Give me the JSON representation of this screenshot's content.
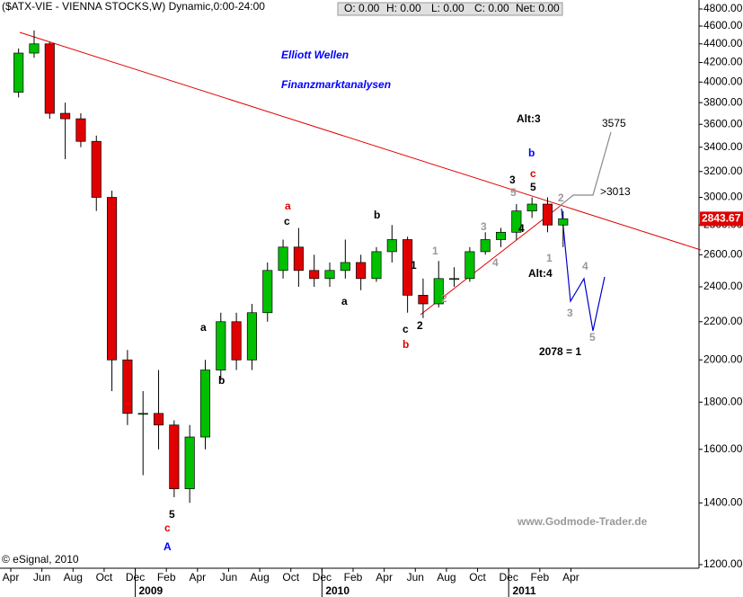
{
  "chart_data": {
    "type": "candlestick",
    "title": "($ATX-VIE - VIENNA STOCKS,W) Dynamic,0:00-24:00",
    "quote_box": [
      "O: 0.00",
      "H: 0.00",
      "L: 0.00",
      "C: 0.00",
      "Net: 0.00"
    ],
    "x": [
      "2008-04",
      "2008-05",
      "2008-06",
      "2008-07",
      "2008-08",
      "2008-09",
      "2008-10",
      "2008-11",
      "2008-12",
      "2009-01",
      "2009-02",
      "2009-03",
      "2009-04",
      "2009-05",
      "2009-06",
      "2009-07",
      "2009-08",
      "2009-09",
      "2009-10",
      "2009-11",
      "2009-12",
      "2010-01",
      "2010-02",
      "2010-03",
      "2010-04",
      "2010-05",
      "2010-06",
      "2010-07",
      "2010-08",
      "2010-09",
      "2010-10",
      "2010-11",
      "2010-12",
      "2011-01",
      "2011-02",
      "2011-03"
    ],
    "open": [
      3900,
      4300,
      4400,
      3700,
      3650,
      3450,
      3000,
      2000,
      1750,
      1750,
      1700,
      1450,
      1650,
      1950,
      2200,
      2000,
      2250,
      2500,
      2650,
      2500,
      2450,
      2500,
      2550,
      2450,
      2620,
      2700,
      2350,
      2300,
      2450,
      2450,
      2620,
      2700,
      2750,
      2900,
      2950,
      2800
    ],
    "high": [
      4350,
      4550,
      4420,
      3800,
      3700,
      3500,
      3050,
      2050,
      1850,
      1950,
      1720,
      1700,
      2000,
      2250,
      2250,
      2300,
      2550,
      2700,
      2780,
      2600,
      2550,
      2700,
      2600,
      2650,
      2800,
      2720,
      2450,
      2560,
      2520,
      2650,
      2750,
      2780,
      2950,
      3000,
      3000,
      2900
    ],
    "low": [
      3850,
      4250,
      3650,
      3300,
      3400,
      2900,
      1850,
      1700,
      1500,
      1600,
      1420,
      1400,
      1600,
      1900,
      1950,
      1950,
      2200,
      2450,
      2400,
      2400,
      2400,
      2450,
      2380,
      2430,
      2550,
      2250,
      2220,
      2280,
      2400,
      2430,
      2600,
      2650,
      2700,
      2850,
      2750,
      2650
    ],
    "close": [
      4300,
      4400,
      3700,
      3650,
      3450,
      3000,
      2000,
      1750,
      1750,
      1700,
      1450,
      1650,
      1950,
      2200,
      2000,
      2250,
      2500,
      2650,
      2500,
      2450,
      2500,
      2550,
      2450,
      2620,
      2700,
      2350,
      2300,
      2450,
      2450,
      2620,
      2700,
      2750,
      2900,
      2950,
      2800,
      2843.67
    ],
    "up_color": "#00c000",
    "down_color": "#e00000",
    "xlim": [
      "2008-04",
      "2011-12"
    ],
    "xticks": [
      {
        "value": "2008-04",
        "label": "Apr"
      },
      {
        "value": "2008-06",
        "label": "Jun"
      },
      {
        "value": "2008-08",
        "label": "Aug"
      },
      {
        "value": "2008-10",
        "label": "Oct"
      },
      {
        "value": "2008-12",
        "label": "Dec"
      },
      {
        "value": "2009-02",
        "label": "Feb"
      },
      {
        "value": "2009-04",
        "label": "Apr"
      },
      {
        "value": "2009-06",
        "label": "Jun"
      },
      {
        "value": "2009-08",
        "label": "Aug"
      },
      {
        "value": "2009-10",
        "label": "Oct"
      },
      {
        "value": "2009-12",
        "label": "Dec"
      },
      {
        "value": "2010-02",
        "label": "Feb"
      },
      {
        "value": "2010-04",
        "label": "Apr"
      },
      {
        "value": "2010-06",
        "label": "Jun"
      },
      {
        "value": "2010-08",
        "label": "Aug"
      },
      {
        "value": "2010-10",
        "label": "Oct"
      },
      {
        "value": "2010-12",
        "label": "Dec"
      },
      {
        "value": "2011-02",
        "label": "Feb"
      },
      {
        "value": "2011-04",
        "label": "Apr"
      }
    ],
    "year_ticks": [
      {
        "value": "2009-01",
        "label": "2009"
      },
      {
        "value": "2010-01",
        "label": "2010"
      },
      {
        "value": "2011-01",
        "label": "2011"
      }
    ],
    "ylim": [
      1200,
      4800
    ],
    "log_scale": true,
    "yticks": [
      {
        "value": 1200,
        "label": "1200.00"
      },
      {
        "value": 1400,
        "label": "1400.00"
      },
      {
        "value": 1600,
        "label": "1600.00"
      },
      {
        "value": 1800,
        "label": "1800.00"
      },
      {
        "value": 2000,
        "label": "2000.00"
      },
      {
        "value": 2200,
        "label": "2200.00"
      },
      {
        "value": 2400,
        "label": "2400.00"
      },
      {
        "value": 2600,
        "label": "2600.00"
      },
      {
        "value": 2800,
        "label": "2800.00"
      },
      {
        "value": 3000,
        "label": "3000.00"
      },
      {
        "value": 3200,
        "label": "3200.00"
      },
      {
        "value": 3400,
        "label": "3400.00"
      },
      {
        "value": 3600,
        "label": "3600.00"
      },
      {
        "value": 3800,
        "label": "3800.00"
      },
      {
        "value": 4000,
        "label": "4000.00"
      },
      {
        "value": 4200,
        "label": "4200.00"
      },
      {
        "value": 4400,
        "label": "4400.00"
      },
      {
        "value": 4600,
        "label": "4600.00"
      },
      {
        "value": 4800,
        "label": "4800.00"
      }
    ],
    "annotations": [
      {
        "text": "Elliott Wellen",
        "color": "#0000ff"
      },
      {
        "text": "Finanzmarktanalysen",
        "color": "#0000ff"
      },
      {
        "text": "Alt:3",
        "color": "#000000"
      },
      {
        "text": "3575",
        "color": "#000000"
      },
      {
        "text": "b",
        "color": "#0000ff"
      },
      {
        "text": "c",
        "color": "#e00000"
      },
      {
        "text": "3",
        "color": "#000000"
      },
      {
        "text": "5",
        "color": "#999999"
      },
      {
        "text": "5",
        "color": "#000000"
      },
      {
        "text": "2",
        "color": "#999999"
      },
      {
        "text": ">3013",
        "color": "#000000"
      },
      {
        "text": "3",
        "color": "#999999"
      },
      {
        "text": "4",
        "color": "#000000"
      },
      {
        "text": "1",
        "color": "#999999"
      },
      {
        "text": "4",
        "color": "#999999"
      },
      {
        "text": "1",
        "color": "#999999"
      },
      {
        "text": "Alt:4",
        "color": "#000000"
      },
      {
        "text": "4",
        "color": "#999999"
      },
      {
        "text": "1",
        "color": "#000000"
      },
      {
        "text": "2",
        "color": "#999999"
      },
      {
        "text": "2",
        "color": "#000000"
      },
      {
        "text": "c",
        "color": "#000000"
      },
      {
        "text": "b",
        "color": "#e00000"
      },
      {
        "text": "3",
        "color": "#999999"
      },
      {
        "text": "5",
        "color": "#999999"
      },
      {
        "text": "2078 = 1",
        "color": "#000000"
      },
      {
        "text": "b",
        "color": "#000000"
      },
      {
        "text": "a",
        "color": "#000000"
      },
      {
        "text": "a",
        "color": "#e00000"
      },
      {
        "text": "c",
        "color": "#000000"
      },
      {
        "text": "a",
        "color": "#000000"
      },
      {
        "text": "b",
        "color": "#000000"
      },
      {
        "text": "5",
        "color": "#000000"
      },
      {
        "text": "c",
        "color": "#e00000"
      },
      {
        "text": "A",
        "color": "#0000ff"
      },
      {
        "text": "www.Godmode-Trader.de",
        "color": "#999999"
      },
      {
        "text": "© eSignal, 2010",
        "color": "#000000"
      }
    ]
  }
}
